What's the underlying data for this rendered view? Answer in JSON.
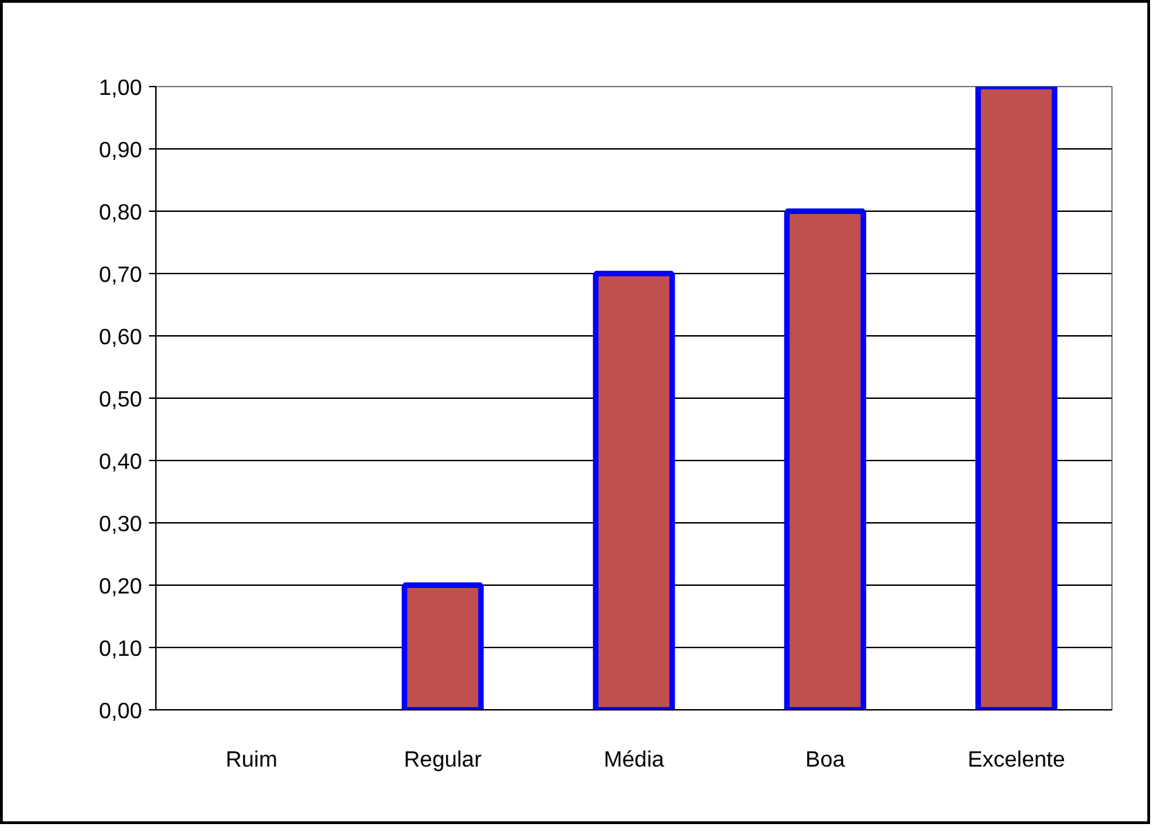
{
  "chart_data": {
    "type": "bar",
    "categories": [
      "Ruim",
      "Regular",
      "Média",
      "Boa",
      "Excelente"
    ],
    "values": [
      0,
      0.2,
      0.7,
      0.8,
      1.0
    ],
    "color": "#c0504d",
    "ylim": [
      0,
      1
    ],
    "yticks": [
      {
        "value": 0,
        "label": "0,00"
      },
      {
        "value": 0.1,
        "label": "0,10"
      },
      {
        "value": 0.2,
        "label": "0,20"
      },
      {
        "value": 0.3,
        "label": "0,30"
      },
      {
        "value": 0.4,
        "label": "0,40"
      },
      {
        "value": 0.5,
        "label": "0,50"
      },
      {
        "value": 0.6,
        "label": "0,60"
      },
      {
        "value": 0.7,
        "label": "0,70"
      },
      {
        "value": 0.8,
        "label": "0,80"
      },
      {
        "value": 0.9,
        "label": "0,90"
      },
      {
        "value": 1.0,
        "label": "1,00"
      }
    ],
    "grid": "y"
  }
}
